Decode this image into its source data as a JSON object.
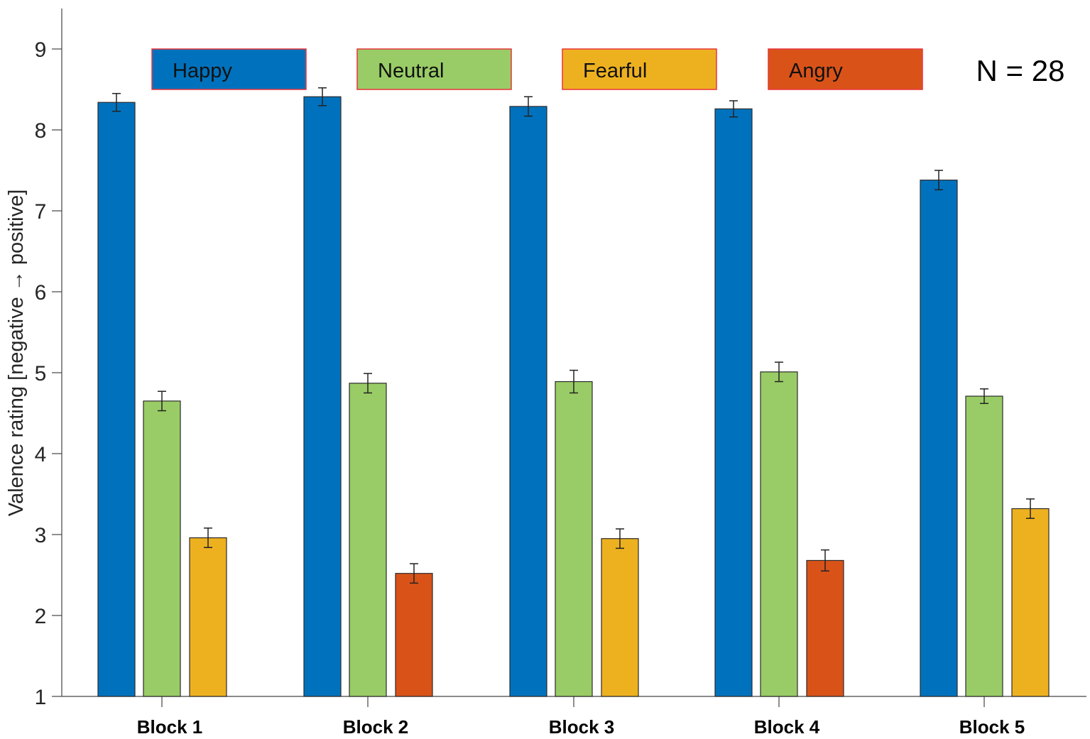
{
  "chart_data": {
    "type": "bar",
    "title": "",
    "xlabel": "",
    "ylabel": "Valence rating [negative → positive]",
    "ylim": [
      1,
      9.5
    ],
    "yticks": [
      1,
      2,
      3,
      4,
      5,
      6,
      7,
      8,
      9
    ],
    "grid": false,
    "legend_position": "top (inside axes, as colored boxes)",
    "annotation": "N = 28",
    "categories": [
      "Block 1",
      "Block 2",
      "Block 3",
      "Block 4",
      "Block 5"
    ],
    "series": [
      {
        "name": "Happy",
        "color": "#0072BD",
        "values": [
          8.34,
          8.41,
          8.29,
          8.26,
          7.38
        ],
        "errors": [
          0.11,
          0.11,
          0.12,
          0.1,
          0.12
        ]
      },
      {
        "name": "Neutral",
        "color": "#99CC66",
        "values": [
          4.65,
          4.87,
          4.89,
          5.01,
          4.71
        ],
        "errors": [
          0.12,
          0.12,
          0.14,
          0.12,
          0.09
        ]
      },
      {
        "name": "Fearful",
        "color": "#EDB120",
        "values": [
          2.96,
          null,
          2.95,
          null,
          3.32
        ],
        "errors": [
          0.12,
          null,
          0.12,
          null,
          0.12
        ]
      },
      {
        "name": "Angry",
        "color": "#D95319",
        "values": [
          null,
          2.52,
          null,
          2.68,
          null
        ],
        "errors": [
          null,
          0.12,
          null,
          0.13,
          null
        ]
      }
    ],
    "bars_per_block": [
      [
        "Happy",
        "Neutral",
        "Fearful"
      ],
      [
        "Happy",
        "Neutral",
        "Angry"
      ],
      [
        "Happy",
        "Neutral",
        "Fearful"
      ],
      [
        "Happy",
        "Neutral",
        "Angry"
      ],
      [
        "Happy",
        "Neutral",
        "Fearful"
      ]
    ]
  },
  "legend": [
    {
      "label": "Happy",
      "color": "#0072BD"
    },
    {
      "label": "Neutral",
      "color": "#99CC66"
    },
    {
      "label": "Fearful",
      "color": "#EDB120"
    },
    {
      "label": "Angry",
      "color": "#D95319"
    }
  ],
  "legend_border_color": "#E8343A"
}
